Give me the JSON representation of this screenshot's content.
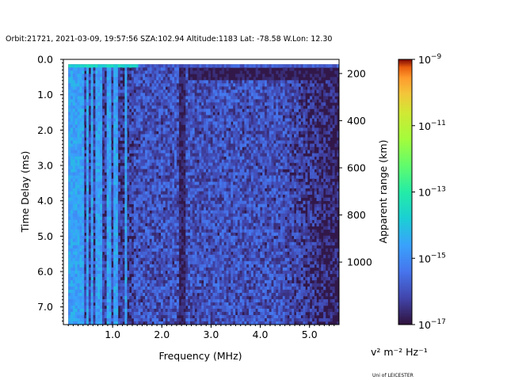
{
  "title": "Orbit:21721, 2021-03-09, 19:57:56 SZA:102.94 Altitude:1183 Lat: -78.58 W.Lon: 12.30",
  "credit": "Uni of LEICESTER",
  "chart_data": {
    "type": "heatmap",
    "title": "Orbit:21721, 2021-03-09, 19:57:56 SZA:102.94 Altitude:1183 Lat: -78.58 W.Lon: 12.30",
    "xlabel": "Frequency (MHz)",
    "ylabel": "Time Delay (ms)",
    "y2label": "Apparent range (km)",
    "xlim": [
      0.0,
      5.6
    ],
    "ylim": [
      7.5,
      0.0
    ],
    "y2lim": [
      1265,
      140
    ],
    "x_ticks": [
      1.0,
      2.0,
      3.0,
      4.0,
      5.0
    ],
    "x_tick_labels": [
      "1.0",
      "2.0",
      "3.0",
      "4.0",
      "5.0"
    ],
    "y_ticks": [
      0.0,
      1.0,
      2.0,
      3.0,
      4.0,
      5.0,
      6.0,
      7.0
    ],
    "y_tick_labels": [
      "0.0",
      "1.0",
      "2.0",
      "3.0",
      "4.0",
      "5.0",
      "6.0",
      "7.0"
    ],
    "y2_ticks": [
      200,
      400,
      600,
      800,
      1000
    ],
    "y2_tick_labels": [
      "200",
      "400",
      "600",
      "800",
      "1000"
    ],
    "colorbar": {
      "label": "v² m⁻² Hz⁻¹",
      "scale": "log",
      "range": [
        1e-17,
        1e-09
      ],
      "colormap": "turbo",
      "ticks": [
        {
          "base": "10",
          "exp": "−9",
          "value": 1e-09
        },
        {
          "base": "10",
          "exp": "−11",
          "value": 1e-11
        },
        {
          "base": "10",
          "exp": "−13",
          "value": 1e-13
        },
        {
          "base": "10",
          "exp": "−15",
          "value": 1e-15
        },
        {
          "base": "10",
          "exp": "−17",
          "value": 1e-17
        }
      ]
    },
    "time_start_ms": 0.14,
    "background_log10": -16.9,
    "low_freq_bands_mhz": [
      0.08,
      0.14,
      0.22,
      0.3,
      0.38,
      0.47,
      0.55,
      0.64,
      0.73,
      0.9,
      1.05,
      1.25
    ],
    "low_freq_band_log10": -14.6,
    "dark_stripes_mhz": [
      2.37,
      2.42
    ],
    "noise_region_mhz": [
      0.1,
      5.5
    ],
    "noise_typical_log10": -15.9,
    "noise_falloff_start_mhz": 4.4,
    "top_echo_log10": -13.6,
    "grid": false,
    "legend": "none"
  }
}
